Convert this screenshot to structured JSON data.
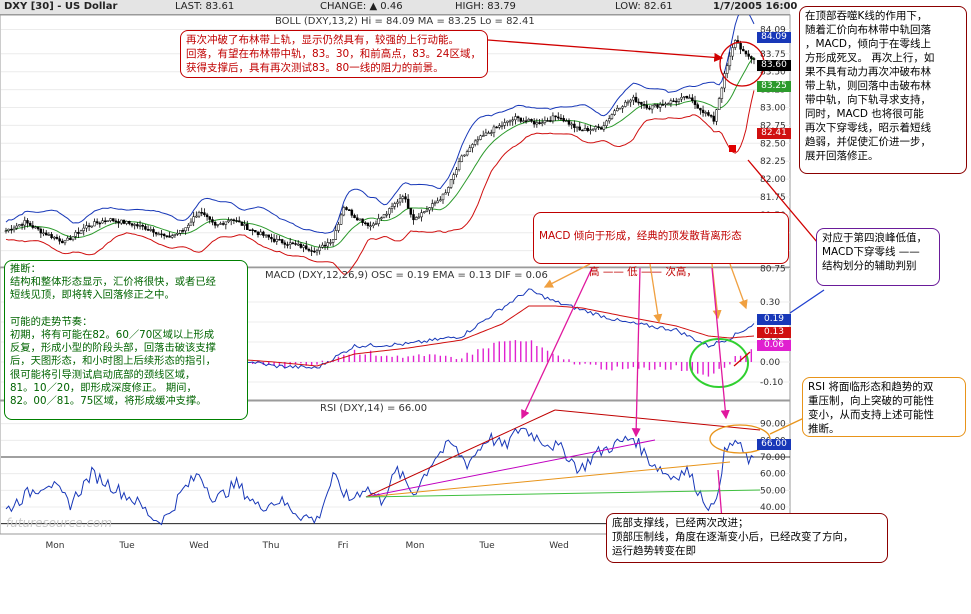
{
  "header": {
    "symbol": "DXY [30] - US Dollar",
    "last": "LAST: 83.61",
    "change": "CHANGE: ▲ 0.46",
    "high": "HIGH: 83.79",
    "low": "LOW: 82.61",
    "datetime": "1/7/2005 16:00"
  },
  "panels": {
    "boll_title": "BOLL (DXY,13,2) Hi = 84.09  MA = 83.25  Lo = 82.41",
    "macd_title": "MACD (DXY,12,26,9)  OSC = 0.19  EMA = 0.13  DIF = 0.06",
    "rsi_title": "RSI (DXY,14) = 66.00"
  },
  "tags": {
    "hi": "84.09",
    "last": "83.60",
    "ma": "83.25",
    "lo": "82.41",
    "macd_osc": "0.19",
    "macd_ema": "0.13",
    "macd_dif": "0.06",
    "rsi": "66.00"
  },
  "watermark": "futuresource.com",
  "notes": {
    "boll": "再次冲破了布林带上轨，显示仍然具有，较强的上行动能。\n回落，有望在布林带中轨，83。30，和前高点，83。24区域，\n获得支撑后，具有再次测试83。80一线的阻力的前景。",
    "right": "在顶部吞噬K线的作用下，\n随着汇价向布林带中轨回落\n，MACD，倾向于在零线上\n方形成死叉。 再次上行，如\n果不具有动力再次冲破布林\n带上轨，则回落中击破布林\n带中轨，向下轨寻求支持，\n同时，MACD 也将很可能\n再次下穿零线，昭示着短线\n趋弱，并促使汇价进一步，\n展开回落修正。",
    "macd": "MACD  倾向于形成，经典的顶发散背离形态",
    "macd_seq": "高  ——  低  ——  次高，",
    "purple": "对应于第四浪峰低值，\nMACD下穿零线 ——\n结构划分的辅助判别",
    "left": "推断：\n结构和整体形态显示，汇价将很快，或者已经\n短线见顶，即将转入回落修正之中。\n\n可能的走势节奏：\n初期，将有可能在82。60／70区域以上形成\n反复，形成小型的阶段头部，回落击破该支撑\n后，天图形态，和小时图上后续形态的指引，\n很可能将引导测试启动底部的颈线区域，\n81。10／20，即形成深度修正。   期间，\n82。00／81。75区域，将形成缓冲支撑。",
    "rsi": "RSI 将面临形态和趋势的双\n重压制，向上突破的可能性\n变小，从而支持上述可能性\n推断。",
    "bottom": "底部支撑线，已经两次改进；\n顶部压制线，角度在逐渐变小后，已经改变了方向，\n运行趋势转变在即"
  },
  "chart_data": {
    "type": "candlestick",
    "x_axis_labels": [
      "Mon",
      "Tue",
      "Wed",
      "Thu",
      "Fri",
      "Mon",
      "Tue",
      "Wed"
    ],
    "price": {
      "yticks": [
        84.09,
        83.75,
        83.5,
        83.25,
        83.0,
        82.75,
        82.5,
        82.25,
        82.0,
        81.75,
        81.5,
        81.25,
        81.0,
        80.75
      ],
      "ylim": [
        80.8,
        84.25
      ],
      "anchors": [
        [
          0,
          81.28
        ],
        [
          7,
          81.4
        ],
        [
          14,
          81.25
        ],
        [
          22,
          81.12
        ],
        [
          30,
          81.34
        ],
        [
          38,
          81.44
        ],
        [
          46,
          81.38
        ],
        [
          54,
          81.3
        ],
        [
          60,
          81.18
        ],
        [
          66,
          81.28
        ],
        [
          72,
          81.55
        ],
        [
          78,
          81.34
        ],
        [
          84,
          81.45
        ],
        [
          92,
          81.28
        ],
        [
          100,
          81.15
        ],
        [
          108,
          81.08
        ],
        [
          116,
          81.0
        ],
        [
          122,
          81.17
        ],
        [
          126,
          81.62
        ],
        [
          130,
          81.48
        ],
        [
          136,
          81.35
        ],
        [
          142,
          81.52
        ],
        [
          148,
          81.78
        ],
        [
          152,
          81.45
        ],
        [
          158,
          81.6
        ],
        [
          164,
          81.8
        ],
        [
          170,
          82.3
        ],
        [
          176,
          82.55
        ],
        [
          182,
          82.7
        ],
        [
          190,
          82.85
        ],
        [
          198,
          82.78
        ],
        [
          206,
          82.88
        ],
        [
          214,
          82.68
        ],
        [
          222,
          82.72
        ],
        [
          228,
          83.0
        ],
        [
          234,
          83.12
        ],
        [
          240,
          83.0
        ],
        [
          248,
          83.08
        ],
        [
          254,
          83.14
        ],
        [
          260,
          82.95
        ],
        [
          264,
          82.82
        ],
        [
          268,
          83.45
        ],
        [
          272,
          83.95
        ],
        [
          276,
          83.72
        ],
        [
          279,
          83.68
        ]
      ]
    },
    "macd": {
      "yticks": [
        0.3,
        0.2,
        0.1,
        0.0,
        -0.1
      ],
      "ylim": [
        -0.17,
        0.4
      ],
      "anchors": [
        [
          0,
          0.0
        ],
        [
          20,
          0.05
        ],
        [
          40,
          0.06
        ],
        [
          60,
          0.01
        ],
        [
          80,
          0.03
        ],
        [
          100,
          -0.02
        ],
        [
          116,
          -0.03
        ],
        [
          130,
          0.08
        ],
        [
          150,
          0.09
        ],
        [
          170,
          0.13
        ],
        [
          185,
          0.27
        ],
        [
          195,
          0.36
        ],
        [
          205,
          0.3
        ],
        [
          215,
          0.26
        ],
        [
          230,
          0.2
        ],
        [
          250,
          0.16
        ],
        [
          262,
          0.08
        ],
        [
          270,
          0.12
        ],
        [
          279,
          0.19
        ]
      ],
      "signal_anchors": [
        [
          0,
          0.02
        ],
        [
          20,
          0.03
        ],
        [
          40,
          0.05
        ],
        [
          60,
          0.02
        ],
        [
          80,
          0.02
        ],
        [
          100,
          0.0
        ],
        [
          116,
          -0.02
        ],
        [
          130,
          0.04
        ],
        [
          150,
          0.07
        ],
        [
          170,
          0.11
        ],
        [
          185,
          0.19
        ],
        [
          195,
          0.28
        ],
        [
          205,
          0.28
        ],
        [
          215,
          0.27
        ],
        [
          230,
          0.23
        ],
        [
          250,
          0.18
        ],
        [
          262,
          0.13
        ],
        [
          270,
          0.12
        ],
        [
          279,
          0.13
        ]
      ]
    },
    "rsi": {
      "yticks": [
        90,
        80,
        70,
        60,
        50,
        40,
        30
      ],
      "ylim": [
        25,
        97
      ],
      "anchors": [
        [
          0,
          38
        ],
        [
          8,
          48
        ],
        [
          16,
          55
        ],
        [
          24,
          42
        ],
        [
          32,
          60
        ],
        [
          40,
          52
        ],
        [
          48,
          44
        ],
        [
          56,
          32
        ],
        [
          60,
          34
        ],
        [
          66,
          50
        ],
        [
          72,
          60
        ],
        [
          78,
          44
        ],
        [
          86,
          54
        ],
        [
          94,
          40
        ],
        [
          102,
          44
        ],
        [
          110,
          35
        ],
        [
          116,
          32
        ],
        [
          122,
          58
        ],
        [
          128,
          44
        ],
        [
          134,
          52
        ],
        [
          140,
          44
        ],
        [
          146,
          62
        ],
        [
          152,
          48
        ],
        [
          160,
          70
        ],
        [
          166,
          78
        ],
        [
          172,
          66
        ],
        [
          180,
          82
        ],
        [
          186,
          76
        ],
        [
          192,
          88
        ],
        [
          200,
          80
        ],
        [
          208,
          74
        ],
        [
          214,
          62
        ],
        [
          220,
          72
        ],
        [
          228,
          78
        ],
        [
          234,
          82
        ],
        [
          240,
          68
        ],
        [
          248,
          58
        ],
        [
          254,
          62
        ],
        [
          260,
          45
        ],
        [
          264,
          38
        ],
        [
          268,
          72
        ],
        [
          272,
          80
        ],
        [
          276,
          70
        ],
        [
          279,
          66
        ]
      ]
    }
  }
}
